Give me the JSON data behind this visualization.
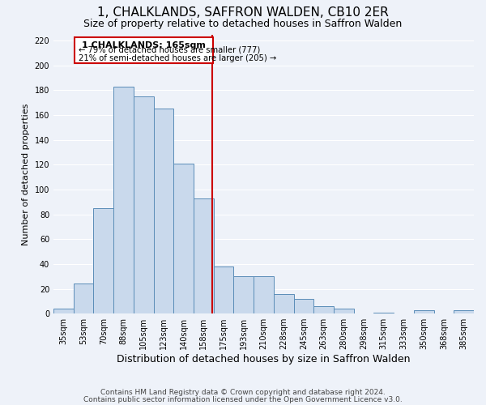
{
  "title": "1, CHALKLANDS, SAFFRON WALDEN, CB10 2ER",
  "subtitle": "Size of property relative to detached houses in Saffron Walden",
  "xlabel": "Distribution of detached houses by size in Saffron Walden",
  "ylabel": "Number of detached properties",
  "categories": [
    "35sqm",
    "53sqm",
    "70sqm",
    "88sqm",
    "105sqm",
    "123sqm",
    "140sqm",
    "158sqm",
    "175sqm",
    "193sqm",
    "210sqm",
    "228sqm",
    "245sqm",
    "263sqm",
    "280sqm",
    "298sqm",
    "315sqm",
    "333sqm",
    "350sqm",
    "368sqm",
    "385sqm"
  ],
  "values": [
    4,
    24,
    85,
    183,
    175,
    165,
    121,
    93,
    38,
    30,
    30,
    16,
    12,
    6,
    4,
    0,
    1,
    0,
    3,
    0,
    3
  ],
  "bar_color": "#c9d9ec",
  "bar_edge_color": "#5b8db8",
  "bar_width": 1.0,
  "vline_color": "#cc0000",
  "vline_label": "1 CHALKLANDS: 165sqm",
  "annotation_line1": "← 79% of detached houses are smaller (777)",
  "annotation_line2": "21% of semi-detached houses are larger (205) →",
  "box_edge_color": "#cc0000",
  "ylim": [
    0,
    225
  ],
  "yticks": [
    0,
    20,
    40,
    60,
    80,
    100,
    120,
    140,
    160,
    180,
    200,
    220
  ],
  "footer1": "Contains HM Land Registry data © Crown copyright and database right 2024.",
  "footer2": "Contains public sector information licensed under the Open Government Licence v3.0.",
  "background_color": "#eef2f9",
  "grid_color": "#ffffff",
  "title_fontsize": 11,
  "subtitle_fontsize": 9,
  "tick_fontsize": 7,
  "axis_label_fontsize": 9,
  "footer_fontsize": 6.5,
  "ylabel_fontsize": 8
}
